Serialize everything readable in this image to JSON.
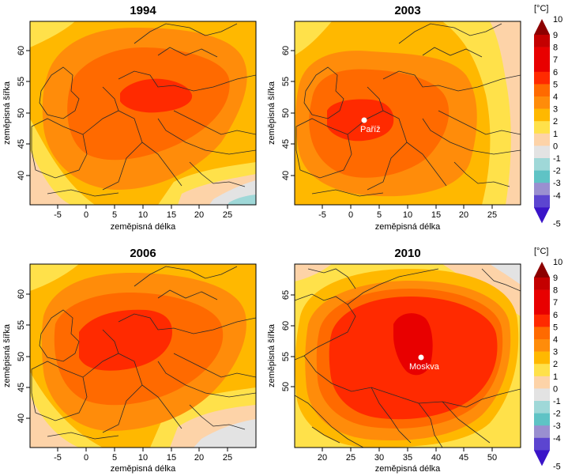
{
  "palette": {
    "c10": "#8c0000",
    "c9": "#c40000",
    "c7": "#e80000",
    "c5": "#ff2a00",
    "c4": "#ff6a00",
    "c3": "#ff8c0a",
    "c2": "#ffb800",
    "c1": "#ffe14a",
    "c0": "#fdd3a8",
    "cn0": "#e3e3e3",
    "cn1": "#9fd8d8",
    "cn2": "#5fc3c5",
    "cn3": "#9a8fd0",
    "cn4": "#5c45d0",
    "cn5": "#3a14c8",
    "border": "#2a2a2a",
    "frame": "#000000"
  },
  "legend_top": {
    "unit": "[°C]",
    "ticks": [
      "10",
      "9",
      "8",
      "7",
      "6",
      "5",
      "4",
      "3",
      "2",
      "1",
      "0",
      "-1",
      "-2",
      "-3",
      "-4",
      "-5"
    ]
  },
  "legend_bottom": {
    "unit": "[°C]",
    "ticks": [
      "10",
      "9",
      "8",
      "7",
      "6",
      "5",
      "4",
      "3",
      "2",
      "1",
      "0",
      "-1",
      "-2",
      "-3",
      "-4",
      "-5"
    ]
  },
  "maps": [
    {
      "title": "1994",
      "xlabel": "zeměpisná délka",
      "ylabel": "zeměpisná šířka",
      "xticks": [
        "-5",
        "0",
        "5",
        "10",
        "15",
        "20",
        "25"
      ],
      "yticks": [
        "40",
        "45",
        "50",
        "55",
        "60"
      ],
      "city": null
    },
    {
      "title": "2003",
      "xlabel": "zeměpisná délka",
      "ylabel": "zeměpisná šířka",
      "xticks": [
        "-5",
        "0",
        "5",
        "10",
        "15",
        "20",
        "25"
      ],
      "yticks": [
        "40",
        "45",
        "50",
        "55",
        "60"
      ],
      "city": "Paříž"
    },
    {
      "title": "2006",
      "xlabel": "zeměpisná délka",
      "ylabel": "zeměpisná šířka",
      "xticks": [
        "-5",
        "0",
        "5",
        "10",
        "15",
        "20",
        "25"
      ],
      "yticks": [
        "40",
        "45",
        "50",
        "55",
        "60"
      ],
      "city": null
    },
    {
      "title": "2010",
      "xlabel": "zeměpisná délka",
      "ylabel": "zeměpisná šířka",
      "xticks": [
        "20",
        "25",
        "30",
        "35",
        "40",
        "45",
        "50"
      ],
      "yticks": [
        "50",
        "55",
        "60",
        "65"
      ],
      "city": "Moskva"
    }
  ]
}
